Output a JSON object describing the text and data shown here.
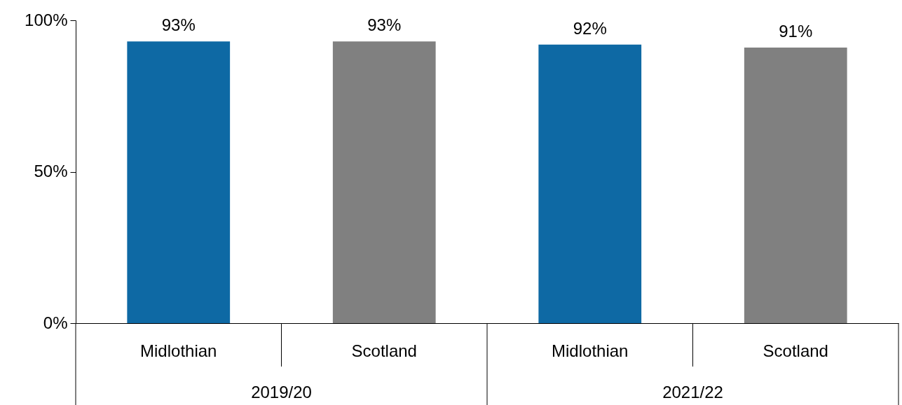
{
  "chart_data": {
    "type": "bar",
    "categories": [
      "2019/20",
      "2021/22"
    ],
    "series": [
      {
        "name": "Midlothian",
        "color": "#0e69a4",
        "values": [
          93,
          92
        ],
        "value_labels": [
          "93%",
          "92%"
        ]
      },
      {
        "name": "Scotland",
        "color": "#808080",
        "values": [
          93,
          91
        ],
        "value_labels": [
          "93%",
          "91%"
        ]
      }
    ],
    "ylim": [
      0,
      100
    ],
    "yticks": [
      {
        "value": 0,
        "label": "0%"
      },
      {
        "value": 50,
        "label": "50%"
      },
      {
        "value": 100,
        "label": "100%"
      }
    ],
    "grid": false
  }
}
